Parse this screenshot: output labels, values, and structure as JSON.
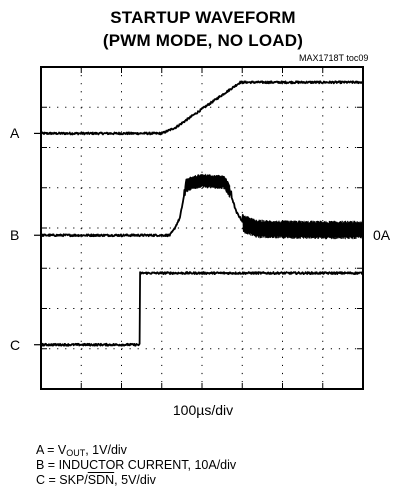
{
  "chart_data": {
    "type": "line",
    "title": "STARTUP WAVEFORM",
    "subtitle": "(PWM MODE, NO LOAD)",
    "figure_id": "MAX1718T toc09",
    "xlabel": "100µs/div",
    "grid": true,
    "divisions": {
      "x": 8,
      "y": 8
    },
    "xlim_div": [
      0,
      8
    ],
    "ylim_div": [
      0,
      8
    ],
    "channels": [
      {
        "label": "A",
        "description": "V_OUT, 1V/div",
        "level_div": 6.35,
        "points_div": [
          [
            0,
            6.35
          ],
          [
            3.0,
            6.35
          ],
          [
            3.35,
            6.5
          ],
          [
            4.95,
            7.62
          ],
          [
            8,
            7.62
          ]
        ]
      },
      {
        "label": "B",
        "description": "INDUCTOR CURRENT, 10A/div",
        "ground_marker": "0A",
        "level_div": 3.82,
        "points_div": [
          [
            0,
            3.82
          ],
          [
            3.2,
            3.82
          ],
          [
            3.3,
            3.95
          ],
          [
            3.45,
            4.25
          ],
          [
            3.6,
            5.05
          ],
          [
            3.75,
            5.12
          ],
          [
            4.0,
            5.18
          ],
          [
            4.3,
            5.15
          ],
          [
            4.55,
            5.14
          ],
          [
            4.7,
            4.9
          ],
          [
            4.85,
            4.4
          ],
          [
            5.05,
            4.1
          ],
          [
            5.35,
            3.98
          ],
          [
            6.0,
            3.96
          ],
          [
            7.0,
            3.95
          ],
          [
            8,
            3.95
          ]
        ]
      },
      {
        "label": "C",
        "description": "SKP/SDN, 5V/div",
        "level_div": 1.1,
        "points_div": [
          [
            0,
            1.1
          ],
          [
            2.45,
            1.1
          ],
          [
            2.45,
            2.88
          ],
          [
            8,
            2.88
          ]
        ]
      }
    ]
  },
  "legend": {
    "a_prefix": "A = V",
    "a_sub": "OUT",
    "a_suffix": ", 1V/div",
    "b_text": "B = INDUCTOR CURRENT, 10A/div",
    "c_prefix": "C = SKP/",
    "c_over": "SDN",
    "c_suffix": ", 5V/div"
  }
}
